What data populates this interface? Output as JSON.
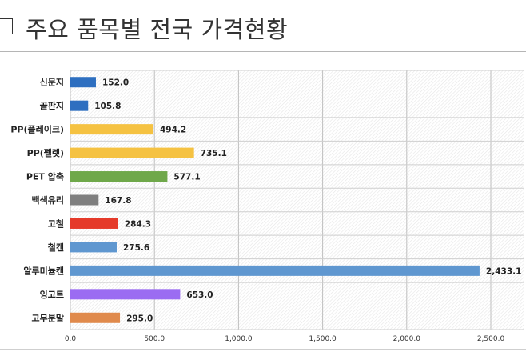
{
  "header": {
    "title": "주요 품목별 전국 가격현황"
  },
  "chart_data": {
    "type": "bar",
    "orientation": "horizontal",
    "categories": [
      "신문지",
      "골판지",
      "PP(플레이크)",
      "PP(펠렛)",
      "PET 압축",
      "백색유리",
      "고철",
      "철캔",
      "알루미늄캔",
      "잉고트",
      "고무분말"
    ],
    "values": [
      152.0,
      105.8,
      494.2,
      735.1,
      577.1,
      167.8,
      284.3,
      275.6,
      2433.1,
      653.0,
      295.0
    ],
    "value_labels": [
      "152.0",
      "105.8",
      "494.2",
      "735.1",
      "577.1",
      "167.8",
      "284.3",
      "275.6",
      "2,433.1",
      "653.0",
      "295.0"
    ],
    "colors": [
      "#2e6fc0",
      "#2e6fc0",
      "#f5c242",
      "#f5c242",
      "#6fa84a",
      "#7f7f7f",
      "#e53a2a",
      "#5f97d0",
      "#5f97d0",
      "#9b6cf2",
      "#e08a4c"
    ],
    "xticks": [
      "0.0",
      "500.0",
      "1,000.0",
      "1,500.0",
      "2,000.0",
      "2,500.0"
    ],
    "xtick_values": [
      0,
      500,
      1000,
      1500,
      2000,
      2500
    ],
    "xlim": [
      0,
      2700
    ],
    "grid": true,
    "gridline_color": "#bfbfbf",
    "background_pattern": "hatched"
  }
}
